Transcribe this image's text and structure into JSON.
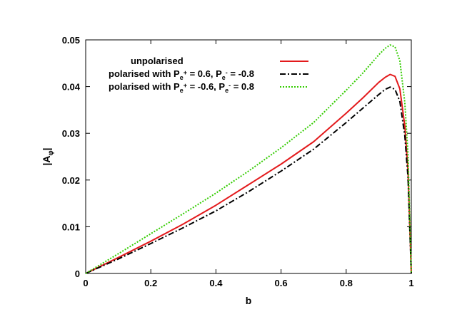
{
  "chart_data": {
    "type": "line",
    "title": "",
    "xlabel": "b",
    "ylabel_base": "|A",
    "ylabel_sub": "φ",
    "ylabel_tail": "|",
    "xlim": [
      0,
      1
    ],
    "ylim": [
      0,
      0.05
    ],
    "x_ticks": [
      0,
      0.2,
      0.4,
      0.6,
      0.8,
      1
    ],
    "x_tick_labels": [
      "0",
      "0.2",
      "0.4",
      "0.6",
      "0.8",
      "1"
    ],
    "y_ticks": [
      0,
      0.01,
      0.02,
      0.03,
      0.04,
      0.05
    ],
    "y_tick_labels": [
      "0",
      "0.01",
      "0.02",
      "0.03",
      "0.04",
      "0.05"
    ],
    "grid": false,
    "legend_position": "top-left inside",
    "series": [
      {
        "name": "unpolarised",
        "color": "#e31a1c",
        "style": "solid",
        "x": [
          0,
          0.1,
          0.2,
          0.3,
          0.4,
          0.5,
          0.6,
          0.7,
          0.8,
          0.85,
          0.9,
          0.92,
          0.935,
          0.95,
          0.965,
          0.98,
          0.99,
          1.0
        ],
        "y": [
          0,
          0.0034,
          0.0069,
          0.0106,
          0.0146,
          0.019,
          0.0234,
          0.0282,
          0.0343,
          0.0375,
          0.0409,
          0.042,
          0.0426,
          0.0422,
          0.0395,
          0.0316,
          0.022,
          0
        ]
      },
      {
        "name": "polarised with P_e+ = 0.6, P_e- = -0.8",
        "legend_parts": {
          "a": "polarised with P",
          "a_sub": "e",
          "a_sup": "+",
          "b": " =  0.6, P",
          "b_sub": "e",
          "b_sup": "-",
          "c": " = -0.8"
        },
        "color": "#000000",
        "style": "dash-dot",
        "x": [
          0,
          0.1,
          0.2,
          0.3,
          0.4,
          0.5,
          0.6,
          0.7,
          0.8,
          0.85,
          0.9,
          0.92,
          0.935,
          0.95,
          0.965,
          0.98,
          0.99,
          1.0
        ],
        "y": [
          0,
          0.0031,
          0.0064,
          0.0098,
          0.0134,
          0.0175,
          0.0219,
          0.0266,
          0.0323,
          0.0353,
          0.0383,
          0.0394,
          0.0399,
          0.0394,
          0.0368,
          0.0295,
          0.0205,
          0
        ]
      },
      {
        "name": "polarised with P_e+ = -0.6, P_e- = 0.8",
        "legend_parts": {
          "a": "polarised with P",
          "a_sub": "e",
          "a_sup": "+",
          "b": " = -0.6, P",
          "b_sub": "e",
          "b_sup": "-",
          "c": " =  0.8"
        },
        "color": "#33cc00",
        "style": "dotted",
        "x": [
          0,
          0.1,
          0.2,
          0.3,
          0.4,
          0.5,
          0.6,
          0.7,
          0.8,
          0.85,
          0.9,
          0.92,
          0.935,
          0.95,
          0.965,
          0.98,
          0.99,
          1.0
        ],
        "y": [
          0,
          0.0042,
          0.0085,
          0.0128,
          0.0172,
          0.0219,
          0.0269,
          0.0323,
          0.0392,
          0.0428,
          0.0468,
          0.0482,
          0.0489,
          0.0485,
          0.0455,
          0.0366,
          0.0255,
          0
        ]
      }
    ]
  }
}
